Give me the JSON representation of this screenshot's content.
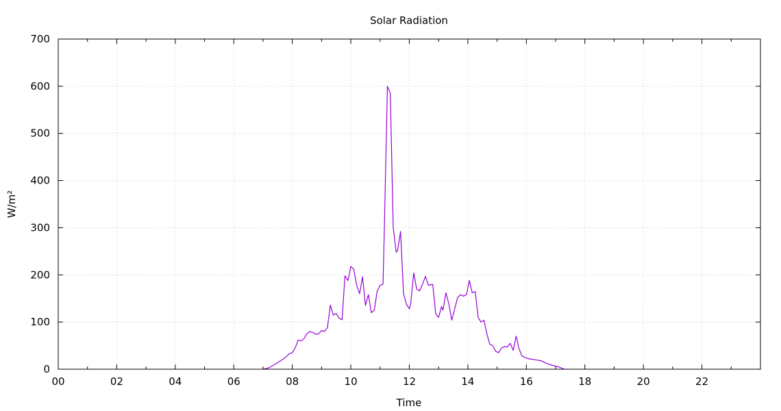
{
  "chart_data": {
    "type": "line",
    "title": "Solar Radiation",
    "xlabel": "Time",
    "ylabel": "W/m²",
    "xlim": [
      0,
      24
    ],
    "ylim": [
      0,
      700
    ],
    "x_ticks": [
      0,
      2,
      4,
      6,
      8,
      10,
      12,
      14,
      16,
      18,
      20,
      22
    ],
    "x_tick_labels": [
      "00",
      "02",
      "04",
      "06",
      "08",
      "10",
      "12",
      "14",
      "16",
      "18",
      "20",
      "22"
    ],
    "y_ticks": [
      0,
      100,
      200,
      300,
      400,
      500,
      600,
      700
    ],
    "y_tick_labels": [
      "0",
      "100",
      "200",
      "300",
      "400",
      "500",
      "600",
      "700"
    ],
    "grid": true,
    "line_color": "#9400d3",
    "series": [
      {
        "x": [
          7.0,
          7.2,
          7.4,
          7.6,
          7.7,
          7.8,
          7.9,
          8.0,
          8.1,
          8.2,
          8.3,
          8.4,
          8.5,
          8.6,
          8.7,
          8.8,
          8.9,
          9.0,
          9.1,
          9.2,
          9.3,
          9.4,
          9.5,
          9.6,
          9.7,
          9.8,
          9.9,
          10.0,
          10.1,
          10.2,
          10.3,
          10.4,
          10.5,
          10.6,
          10.7,
          10.8,
          10.9,
          11.0,
          11.1,
          11.15,
          11.25,
          11.35,
          11.45,
          11.55,
          11.6,
          11.7,
          11.8,
          11.9,
          12.0,
          12.05,
          12.15,
          12.25,
          12.35,
          12.45,
          12.55,
          12.65,
          12.8,
          12.9,
          13.0,
          13.1,
          13.15,
          13.25,
          13.35,
          13.45,
          13.55,
          13.65,
          13.75,
          13.85,
          13.95,
          14.05,
          14.15,
          14.25,
          14.35,
          14.45,
          14.55,
          14.65,
          14.75,
          14.85,
          14.95,
          15.05,
          15.15,
          15.25,
          15.35,
          15.45,
          15.55,
          15.65,
          15.75,
          15.85,
          15.95,
          16.1,
          16.3,
          16.5,
          16.7,
          16.9,
          17.1,
          17.3
        ],
        "y": [
          0,
          3,
          10,
          18,
          22,
          27,
          33,
          35,
          45,
          62,
          60,
          65,
          75,
          80,
          78,
          74,
          75,
          82,
          80,
          88,
          136,
          115,
          118,
          108,
          105,
          198,
          188,
          218,
          212,
          178,
          160,
          196,
          135,
          158,
          120,
          125,
          165,
          178,
          180,
          310,
          600,
          585,
          300,
          248,
          252,
          292,
          160,
          138,
          128,
          140,
          204,
          170,
          166,
          180,
          197,
          178,
          180,
          118,
          110,
          133,
          125,
          162,
          138,
          104,
          128,
          152,
          158,
          155,
          158,
          188,
          162,
          165,
          110,
          100,
          104,
          75,
          53,
          50,
          38,
          35,
          45,
          48,
          47,
          55,
          40,
          70,
          43,
          28,
          25,
          22,
          20,
          18,
          12,
          8,
          5,
          0
        ]
      }
    ]
  }
}
